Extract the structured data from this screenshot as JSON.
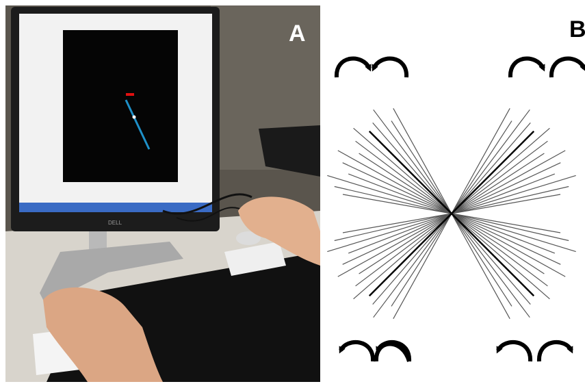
{
  "panels": {
    "a": {
      "label": "A",
      "monitor_brand": "DELL"
    },
    "b": {
      "label": "B"
    }
  },
  "colors": {
    "photo_background": "#4a4640",
    "screen_black": "#050505",
    "cursor_line": "#1e90c8",
    "target_marker": "#e01010",
    "diagram_lines": "#555555",
    "diagram_main_lines": "#000000"
  },
  "icons": {
    "top_left": "converging-curved-arrows-icon",
    "top_right": "clockwise-curved-arrows-icon",
    "bottom_left": "diverging-curved-arrows-icon",
    "bottom_right": "counterclockwise-curved-arrows-icon"
  }
}
